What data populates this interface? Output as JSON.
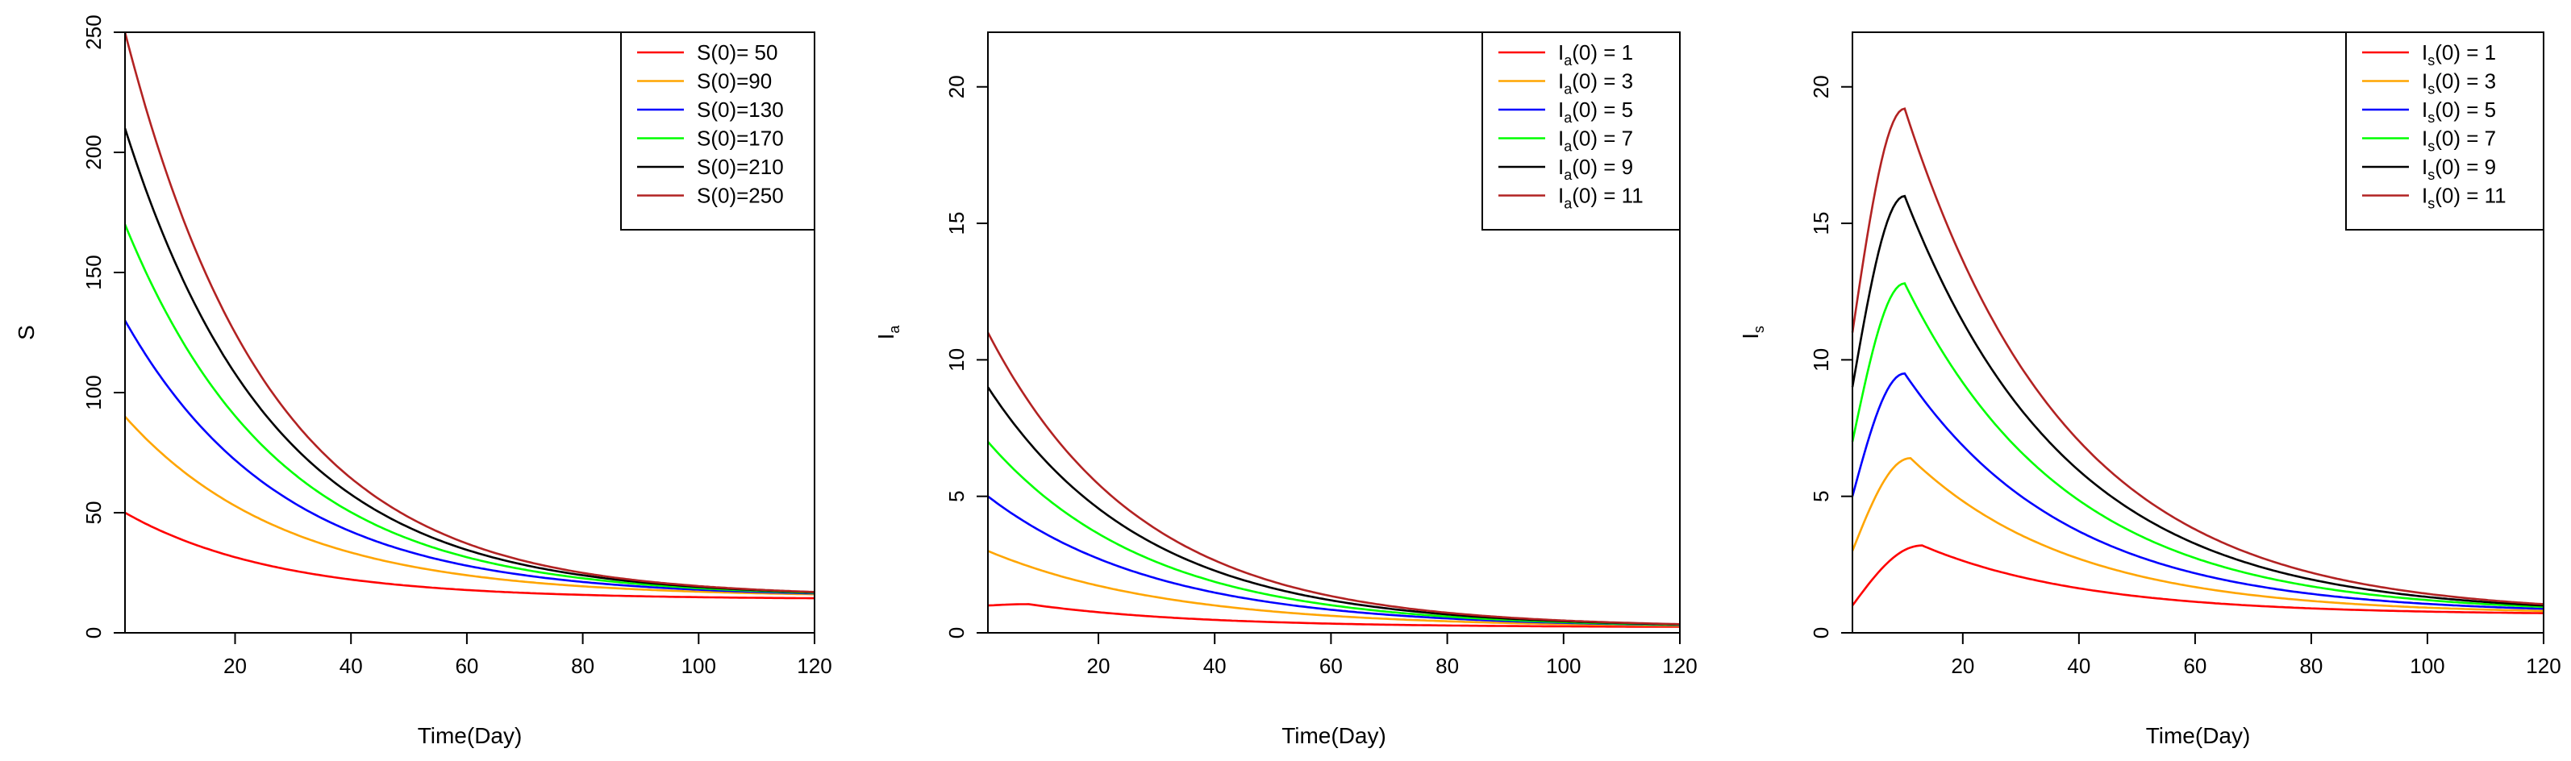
{
  "chart_data": [
    {
      "id": "S",
      "type": "line",
      "xlabel": "Time(Day)",
      "ylabel": {
        "main": "S",
        "sub": ""
      },
      "xlim": [
        1,
        120
      ],
      "ylim": [
        0,
        250
      ],
      "xticks": [
        20,
        40,
        60,
        80,
        100,
        120
      ],
      "yticks": [
        0,
        50,
        100,
        150,
        200,
        250
      ],
      "legend_position": "top-right",
      "series": [
        {
          "label": "S(0)= 50",
          "color": "#ff0000",
          "model": "decay",
          "y0": 50,
          "yinf": 14,
          "k": 0.038
        },
        {
          "label": "S(0)=90",
          "color": "#ffa500",
          "model": "decay",
          "y0": 90,
          "yinf": 15,
          "k": 0.036
        },
        {
          "label": "S(0)=130",
          "color": "#0000ff",
          "model": "decay",
          "y0": 130,
          "yinf": 15,
          "k": 0.037
        },
        {
          "label": "S(0)=170",
          "color": "#00ff00",
          "model": "decay",
          "y0": 170,
          "yinf": 15,
          "k": 0.038
        },
        {
          "label": "S(0)=210",
          "color": "#000000",
          "model": "decay",
          "y0": 210,
          "yinf": 15,
          "k": 0.039
        },
        {
          "label": "S(0)=250",
          "color": "#b22222",
          "model": "decay",
          "y0": 250,
          "yinf": 15,
          "k": 0.04
        }
      ]
    },
    {
      "id": "Ia",
      "type": "line",
      "xlabel": "Time(Day)",
      "ylabel": {
        "main": "I",
        "sub": "a"
      },
      "xlim": [
        1,
        120
      ],
      "ylim": [
        0,
        22
      ],
      "xticks": [
        20,
        40,
        60,
        80,
        100,
        120
      ],
      "yticks": [
        0,
        5,
        10,
        15,
        20
      ],
      "legend_position": "top-right",
      "series": [
        {
          "label": {
            "main": "I",
            "sub": "a",
            "rest": "(0) = 1"
          },
          "color": "#ff0000",
          "model": "bump",
          "y0": 1,
          "peak": 1.05,
          "tpeak": 8,
          "yend": 0.22
        },
        {
          "label": {
            "main": "I",
            "sub": "a",
            "rest": "(0) = 3"
          },
          "color": "#ffa500",
          "model": "decay",
          "y0": 3,
          "yinf": 0.2,
          "k": 0.032
        },
        {
          "label": {
            "main": "I",
            "sub": "a",
            "rest": "(0) = 5"
          },
          "color": "#0000ff",
          "model": "decay",
          "y0": 5,
          "yinf": 0.2,
          "k": 0.034
        },
        {
          "label": {
            "main": "I",
            "sub": "a",
            "rest": "(0) = 7"
          },
          "color": "#00ff00",
          "model": "decay",
          "y0": 7,
          "yinf": 0.2,
          "k": 0.036
        },
        {
          "label": {
            "main": "I",
            "sub": "a",
            "rest": "(0) = 9"
          },
          "color": "#000000",
          "model": "decay",
          "y0": 9,
          "yinf": 0.2,
          "k": 0.037
        },
        {
          "label": {
            "main": "I",
            "sub": "a",
            "rest": "(0) = 11"
          },
          "color": "#b22222",
          "model": "decay",
          "y0": 11,
          "yinf": 0.2,
          "k": 0.038
        }
      ]
    },
    {
      "id": "Is",
      "type": "line",
      "xlabel": "Time(Day)",
      "ylabel": {
        "main": "I",
        "sub": "s"
      },
      "xlim": [
        1,
        120
      ],
      "ylim": [
        0,
        22
      ],
      "xticks": [
        20,
        40,
        60,
        80,
        100,
        120
      ],
      "yticks": [
        0,
        5,
        10,
        15,
        20
      ],
      "legend_position": "top-right",
      "series": [
        {
          "label": {
            "main": "I",
            "sub": "s",
            "rest": "(0) = 1"
          },
          "color": "#ff0000",
          "model": "bump",
          "y0": 1,
          "peak": 3.2,
          "tpeak": 13,
          "yend": 0.72
        },
        {
          "label": {
            "main": "I",
            "sub": "s",
            "rest": "(0) = 3"
          },
          "color": "#ffa500",
          "model": "bump",
          "y0": 3,
          "peak": 6.4,
          "tpeak": 11,
          "yend": 0.8
        },
        {
          "label": {
            "main": "I",
            "sub": "s",
            "rest": "(0) = 5"
          },
          "color": "#0000ff",
          "model": "bump",
          "y0": 5,
          "peak": 9.5,
          "tpeak": 10,
          "yend": 0.88
        },
        {
          "label": {
            "main": "I",
            "sub": "s",
            "rest": "(0) = 7"
          },
          "color": "#00ff00",
          "model": "bump",
          "y0": 7,
          "peak": 12.8,
          "tpeak": 10,
          "yend": 0.95
        },
        {
          "label": {
            "main": "I",
            "sub": "s",
            "rest": "(0) = 9"
          },
          "color": "#000000",
          "model": "bump",
          "y0": 9,
          "peak": 16.0,
          "tpeak": 10,
          "yend": 1.0
        },
        {
          "label": {
            "main": "I",
            "sub": "s",
            "rest": "(0) = 11"
          },
          "color": "#b22222",
          "model": "bump",
          "y0": 11,
          "peak": 19.2,
          "tpeak": 10,
          "yend": 1.05
        }
      ]
    }
  ]
}
